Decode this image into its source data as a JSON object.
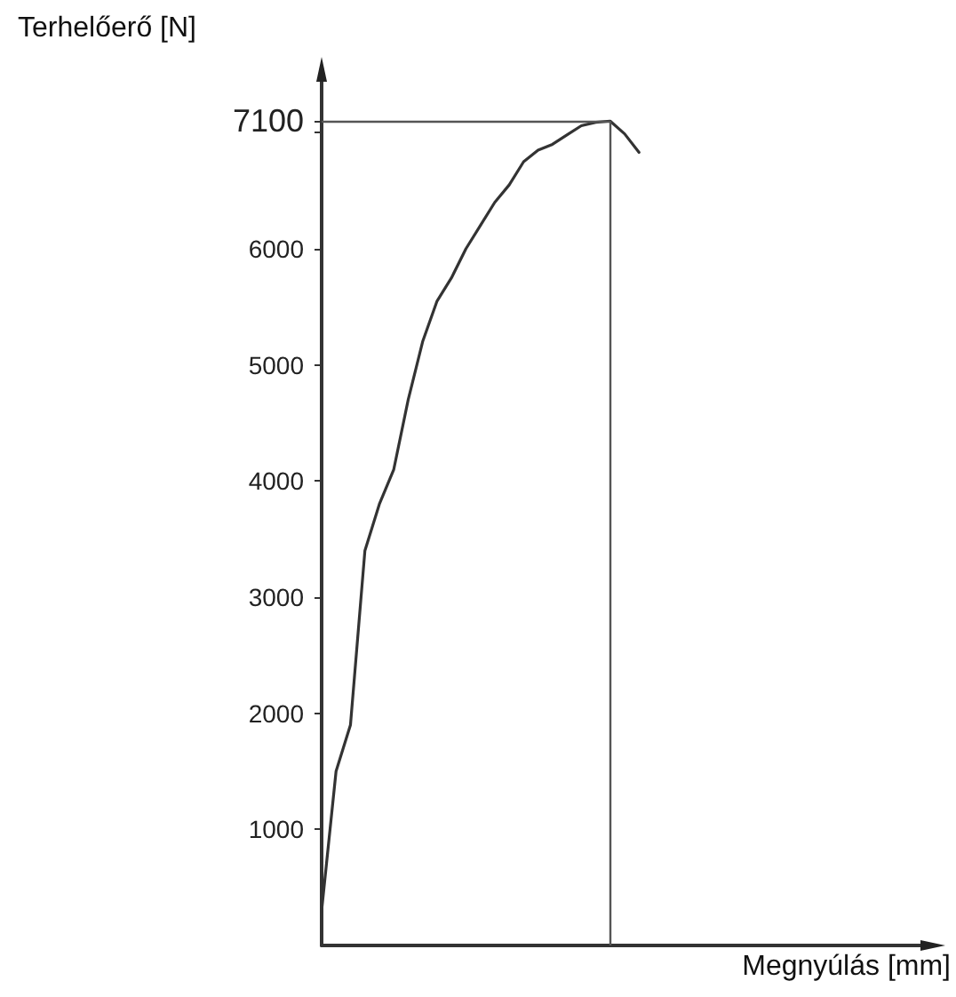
{
  "chart_data": {
    "type": "line",
    "xlabel": "Megnyúlás [mm]",
    "ylabel": "Terhelőerő [N]",
    "categories": [
      null,
      null,
      null,
      null,
      null,
      null,
      null,
      null,
      null,
      null,
      null,
      null,
      null,
      null,
      null,
      null,
      null,
      null,
      null,
      null,
      null,
      null,
      null,
      null,
      null,
      null,
      null,
      null,
      null,
      null,
      null,
      null,
      null,
      null,
      null,
      null,
      null,
      null,
      null,
      null,
      null,
      null,
      null
    ],
    "series": [
      {
        "color": "#333333",
        "values": [
          300,
          1500,
          1900,
          3400,
          3800,
          4100,
          4700,
          5200,
          5550,
          5750,
          6000,
          6200,
          6400,
          6550,
          6750,
          6850,
          6900,
          6980,
          7060,
          7090,
          7100,
          6990,
          6830,
          null,
          null,
          null,
          null,
          null,
          null,
          null,
          null,
          null,
          null,
          null,
          null,
          null,
          null,
          null,
          null,
          null,
          null,
          null,
          null
        ]
      }
    ],
    "ylim": [
      0,
      7500
    ],
    "yticks": [
      1000,
      2000,
      3000,
      4000,
      5000,
      6000,
      {
        "value": 7000,
        "label": null
      },
      7100
    ],
    "ref_lines": [
      {
        "axis": "y",
        "value": 7100,
        "color": "#555555"
      }
    ],
    "grid": false,
    "marker": "none",
    "line_style": "solid"
  }
}
